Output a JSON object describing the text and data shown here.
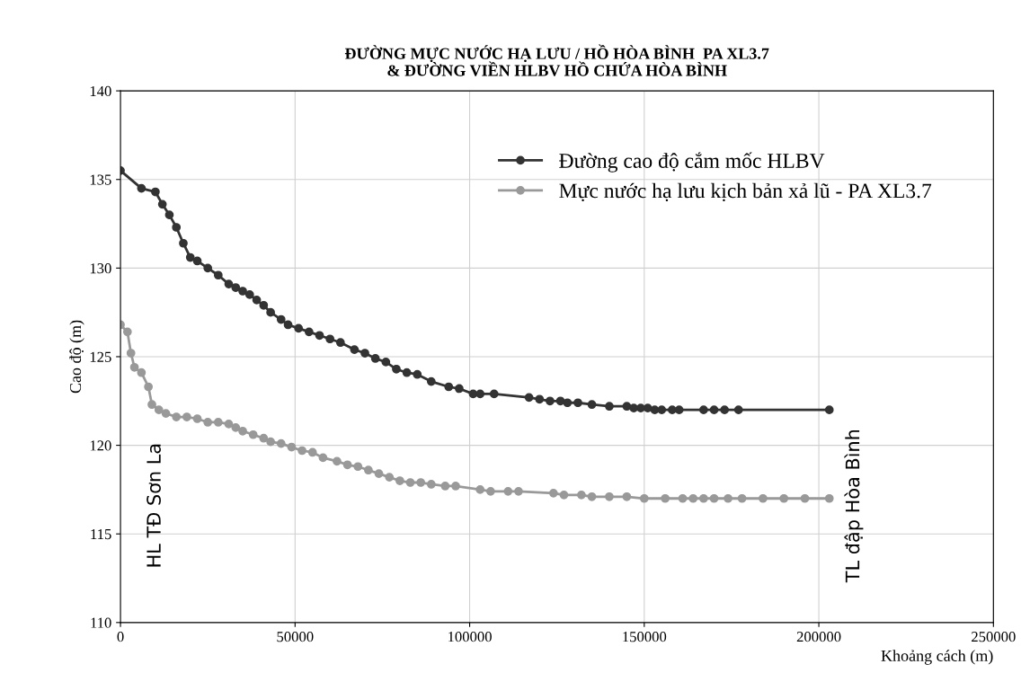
{
  "chart_data": {
    "type": "line",
    "title": "ĐƯỜNG MỰC NƯỚC HẠ LƯU / HỒ HÒA BÌNH  PA XL3.7\n& ĐƯỜNG VIỀN HLBV HỒ CHỨA HÒA BÌNH",
    "xlabel": "Khoảng cách (m)",
    "ylabel": "Cao độ (m)",
    "xlim": [
      0,
      250000
    ],
    "xticks": [
      0,
      50000,
      100000,
      150000,
      200000,
      250000
    ],
    "ylim": [
      110,
      140
    ],
    "yticks": [
      110,
      115,
      120,
      125,
      130,
      135,
      140
    ],
    "grid": true,
    "legend": "top right",
    "marker": "circle",
    "line_style": "solid",
    "annotations": [
      "HL TĐ Sơn La",
      "TL đập Hòa Bình"
    ],
    "series": [
      {
        "name": "Đường cao độ cắm mốc HLBV",
        "color": "#333333",
        "x": [
          0,
          6000,
          10000,
          12000,
          14000,
          16000,
          18000,
          20000,
          22000,
          25000,
          28000,
          31000,
          33000,
          35000,
          37000,
          39000,
          41000,
          43000,
          46000,
          48000,
          51000,
          54000,
          57000,
          60000,
          63000,
          67000,
          70000,
          73000,
          76000,
          79000,
          82000,
          85000,
          89000,
          94000,
          97000,
          101000,
          103000,
          107000,
          117000,
          120000,
          123000,
          126000,
          128000,
          131000,
          135000,
          140000,
          145000,
          147000,
          149000,
          151000,
          153000,
          155000,
          158000,
          160000,
          167000,
          170000,
          173000,
          177000,
          203000
        ],
        "values": [
          135.5,
          134.5,
          134.3,
          133.6,
          133.0,
          132.3,
          131.4,
          130.6,
          130.4,
          130.0,
          129.6,
          129.1,
          128.9,
          128.7,
          128.5,
          128.2,
          127.9,
          127.5,
          127.1,
          126.8,
          126.6,
          126.4,
          126.2,
          126.0,
          125.8,
          125.4,
          125.2,
          124.9,
          124.7,
          124.3,
          124.1,
          124.0,
          123.6,
          123.3,
          123.2,
          122.9,
          122.9,
          122.9,
          122.7,
          122.6,
          122.5,
          122.5,
          122.4,
          122.4,
          122.3,
          122.2,
          122.2,
          122.1,
          122.1,
          122.1,
          122.0,
          122.0,
          122.0,
          122.0,
          122.0,
          122.0,
          122.0,
          122.0,
          122.0
        ]
      },
      {
        "name": "Mực nước hạ lưu kịch bản xả lũ - PA XL3.7",
        "color": "#999999",
        "x": [
          0,
          2000,
          3000,
          4000,
          6000,
          8000,
          9000,
          11000,
          13000,
          16000,
          19000,
          22000,
          25000,
          28000,
          31000,
          33000,
          35000,
          38000,
          41000,
          43000,
          46000,
          49000,
          52000,
          55000,
          58000,
          62000,
          65000,
          68000,
          71000,
          74000,
          77000,
          80000,
          83000,
          86000,
          89000,
          93000,
          96000,
          103000,
          106000,
          111000,
          114000,
          124000,
          127000,
          132000,
          135000,
          140000,
          145000,
          150000,
          156000,
          161000,
          164000,
          167000,
          170000,
          174000,
          178000,
          184000,
          190000,
          196000,
          203000
        ],
        "values": [
          126.8,
          126.4,
          125.2,
          124.4,
          124.1,
          123.3,
          122.3,
          122.0,
          121.8,
          121.6,
          121.6,
          121.5,
          121.3,
          121.3,
          121.2,
          121.0,
          120.8,
          120.6,
          120.4,
          120.2,
          120.1,
          119.9,
          119.7,
          119.6,
          119.3,
          119.1,
          118.9,
          118.8,
          118.6,
          118.4,
          118.2,
          118.0,
          117.9,
          117.9,
          117.8,
          117.7,
          117.7,
          117.5,
          117.4,
          117.4,
          117.4,
          117.3,
          117.2,
          117.2,
          117.1,
          117.1,
          117.1,
          117.0,
          117.0,
          117.0,
          117.0,
          117.0,
          117.0,
          117.0,
          117.0,
          117.0,
          117.0,
          117.0,
          117.0
        ]
      }
    ]
  }
}
